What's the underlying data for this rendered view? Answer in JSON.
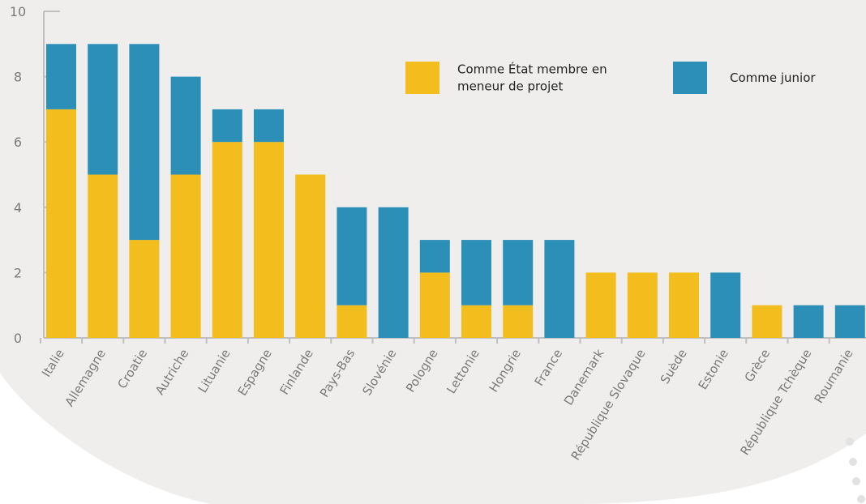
{
  "chart_data": {
    "type": "bar",
    "stacked": true,
    "categories": [
      "Italie",
      "Allemagne",
      "Croatie",
      "Autriche",
      "Lituanie",
      "Espagne",
      "Finlande",
      "Pays-Bas",
      "Slovénie",
      "Pologne",
      "Lettonie",
      "Hongrie",
      "France",
      "Danemark",
      "République Slovaque",
      "Suède",
      "Estonie",
      "Grèce",
      "République Tchèque",
      "Roumanie"
    ],
    "series": [
      {
        "name": "Comme État membre en meneur de projet",
        "legend_lines": [
          "Comme État membre en",
          "meneur de projet"
        ],
        "color": "#f2bd1d",
        "values": [
          7,
          5,
          3,
          5,
          6,
          6,
          5,
          1,
          0,
          2,
          1,
          1,
          0,
          2,
          2,
          2,
          0,
          1,
          0,
          0
        ]
      },
      {
        "name": "Comme junior",
        "legend_lines": [
          "Comme junior"
        ],
        "color": "#2b8fb8",
        "values": [
          2,
          4,
          6,
          3,
          1,
          1,
          0,
          3,
          4,
          1,
          2,
          2,
          3,
          0,
          0,
          0,
          2,
          0,
          1,
          1
        ]
      }
    ],
    "ylim": [
      0,
      10
    ],
    "yticks": [
      "0",
      "2",
      "4",
      "6",
      "8",
      "10"
    ],
    "legend_position": "top-right",
    "grid": false
  },
  "colors": {
    "background_shape": "#efeeec",
    "axis": "#bfbfbf"
  }
}
